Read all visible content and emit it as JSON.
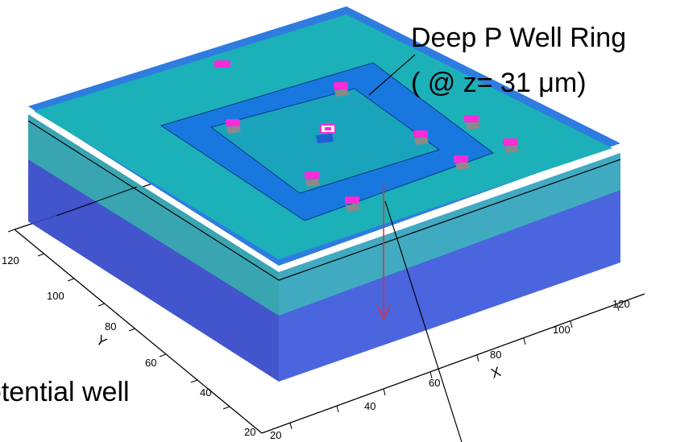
{
  "annotation": {
    "line1": "Deep P Well Ring",
    "line2": "( @ z= 31 μm)"
  },
  "partial_label": "potential well",
  "axes": {
    "x_label": "X",
    "y_label": "Y",
    "x_ticks": [
      "20",
      "40",
      "60",
      "80",
      "100",
      "120"
    ],
    "y_ticks": [
      "20",
      "40",
      "60",
      "80",
      "100",
      "120"
    ]
  },
  "colors": {
    "outer_surface": "#1cb0b8",
    "deep_p_well_ring": "#1878e0",
    "inner_region": "#1aa4bc",
    "bulk": "#3a52d8",
    "contact_pad": "#ff2ad8",
    "arrow": "#e03030"
  }
}
